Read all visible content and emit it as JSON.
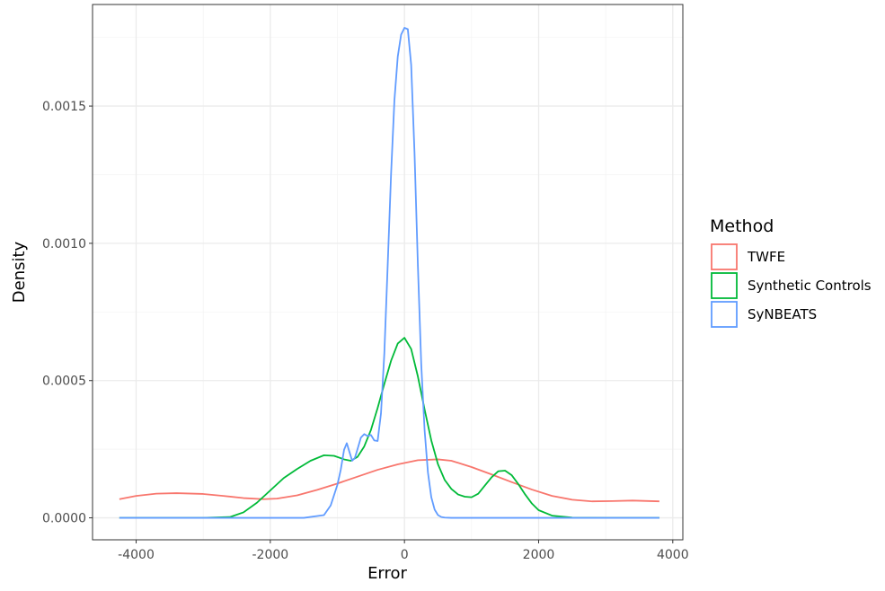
{
  "chart_data": {
    "type": "line",
    "title": "",
    "xlabel": "Error",
    "ylabel": "Density",
    "xlim": [
      -4650,
      4150
    ],
    "ylim": [
      -8e-05,
      0.00187
    ],
    "x_ticks": [
      -4000,
      -2000,
      0,
      2000,
      4000
    ],
    "x_tick_labels": [
      "-4000",
      "-2000",
      "0",
      "2000",
      "4000"
    ],
    "y_ticks": [
      0,
      0.0005,
      0.001,
      0.0015
    ],
    "y_tick_labels": [
      "0.0000",
      "0.0005",
      "0.0010",
      "0.0015"
    ],
    "grid": true,
    "legend": {
      "title": "Method",
      "position": "right",
      "entries": [
        "TWFE",
        "Synthetic Controls",
        "SyNBEATS"
      ]
    },
    "series": [
      {
        "name": "TWFE",
        "color": "#F8766D",
        "x": [
          -4250,
          -4000,
          -3700,
          -3400,
          -3000,
          -2700,
          -2400,
          -2100,
          -1900,
          -1600,
          -1300,
          -1000,
          -700,
          -400,
          -100,
          200,
          500,
          700,
          1000,
          1300,
          1600,
          1900,
          2200,
          2500,
          2800,
          3100,
          3400,
          3800
        ],
        "y": [
          6.8e-05,
          8e-05,
          8.8e-05,
          9e-05,
          8.7e-05,
          8e-05,
          7.2e-05,
          6.8e-05,
          7e-05,
          8.2e-05,
          0.000102,
          0.000125,
          0.00015,
          0.000175,
          0.000195,
          0.00021,
          0.000213,
          0.000208,
          0.000185,
          0.000158,
          0.00013,
          0.000103,
          8e-05,
          6.6e-05,
          6e-05,
          6.1e-05,
          6.3e-05,
          6e-05
        ]
      },
      {
        "name": "Synthetic Controls",
        "color": "#00BA38",
        "x": [
          -4250,
          -3000,
          -2600,
          -2400,
          -2200,
          -2000,
          -1800,
          -1600,
          -1400,
          -1200,
          -1050,
          -900,
          -800,
          -700,
          -600,
          -500,
          -400,
          -300,
          -200,
          -100,
          0,
          100,
          200,
          300,
          400,
          500,
          600,
          700,
          800,
          900,
          1000,
          1100,
          1200,
          1300,
          1400,
          1500,
          1600,
          1700,
          1800,
          1900,
          2000,
          2200,
          2500,
          3000,
          3800
        ],
        "y": [
          0,
          0,
          3e-06,
          2e-05,
          5.5e-05,
          0.0001,
          0.000145,
          0.000178,
          0.000208,
          0.000228,
          0.000226,
          0.000213,
          0.000208,
          0.000222,
          0.00026,
          0.00032,
          0.0004,
          0.000488,
          0.000572,
          0.000635,
          0.000656,
          0.000615,
          0.000515,
          0.000395,
          0.000282,
          0.000195,
          0.000138,
          0.000105,
          8.5e-05,
          7.7e-05,
          7.5e-05,
          8.8e-05,
          0.000118,
          0.000148,
          0.00017,
          0.000172,
          0.000155,
          0.000122,
          8.5e-05,
          5.2e-05,
          2.8e-05,
          8e-06,
          1e-06,
          0,
          0
        ]
      },
      {
        "name": "SyNBEATS",
        "color": "#619CFF",
        "x": [
          -4250,
          -1500,
          -1200,
          -1100,
          -1000,
          -950,
          -900,
          -860,
          -820,
          -780,
          -740,
          -700,
          -650,
          -600,
          -550,
          -500,
          -450,
          -400,
          -350,
          -300,
          -250,
          -200,
          -150,
          -100,
          -50,
          0,
          50,
          100,
          150,
          200,
          250,
          300,
          350,
          400,
          450,
          500,
          550,
          600,
          700,
          900,
          3800
        ],
        "y": [
          0,
          0,
          1e-05,
          4.5e-05,
          0.00012,
          0.000175,
          0.000248,
          0.000272,
          0.00024,
          0.000208,
          0.000218,
          0.00025,
          0.000292,
          0.000305,
          0.000298,
          0.000302,
          0.000282,
          0.00028,
          0.00038,
          0.0006,
          0.00092,
          0.00125,
          0.00152,
          0.00168,
          0.00176,
          0.001785,
          0.00178,
          0.00165,
          0.00133,
          0.00092,
          0.00056,
          0.00032,
          0.000165,
          7.5e-05,
          3e-05,
          1e-05,
          3e-06,
          1e-06,
          0,
          0,
          0
        ]
      }
    ]
  }
}
